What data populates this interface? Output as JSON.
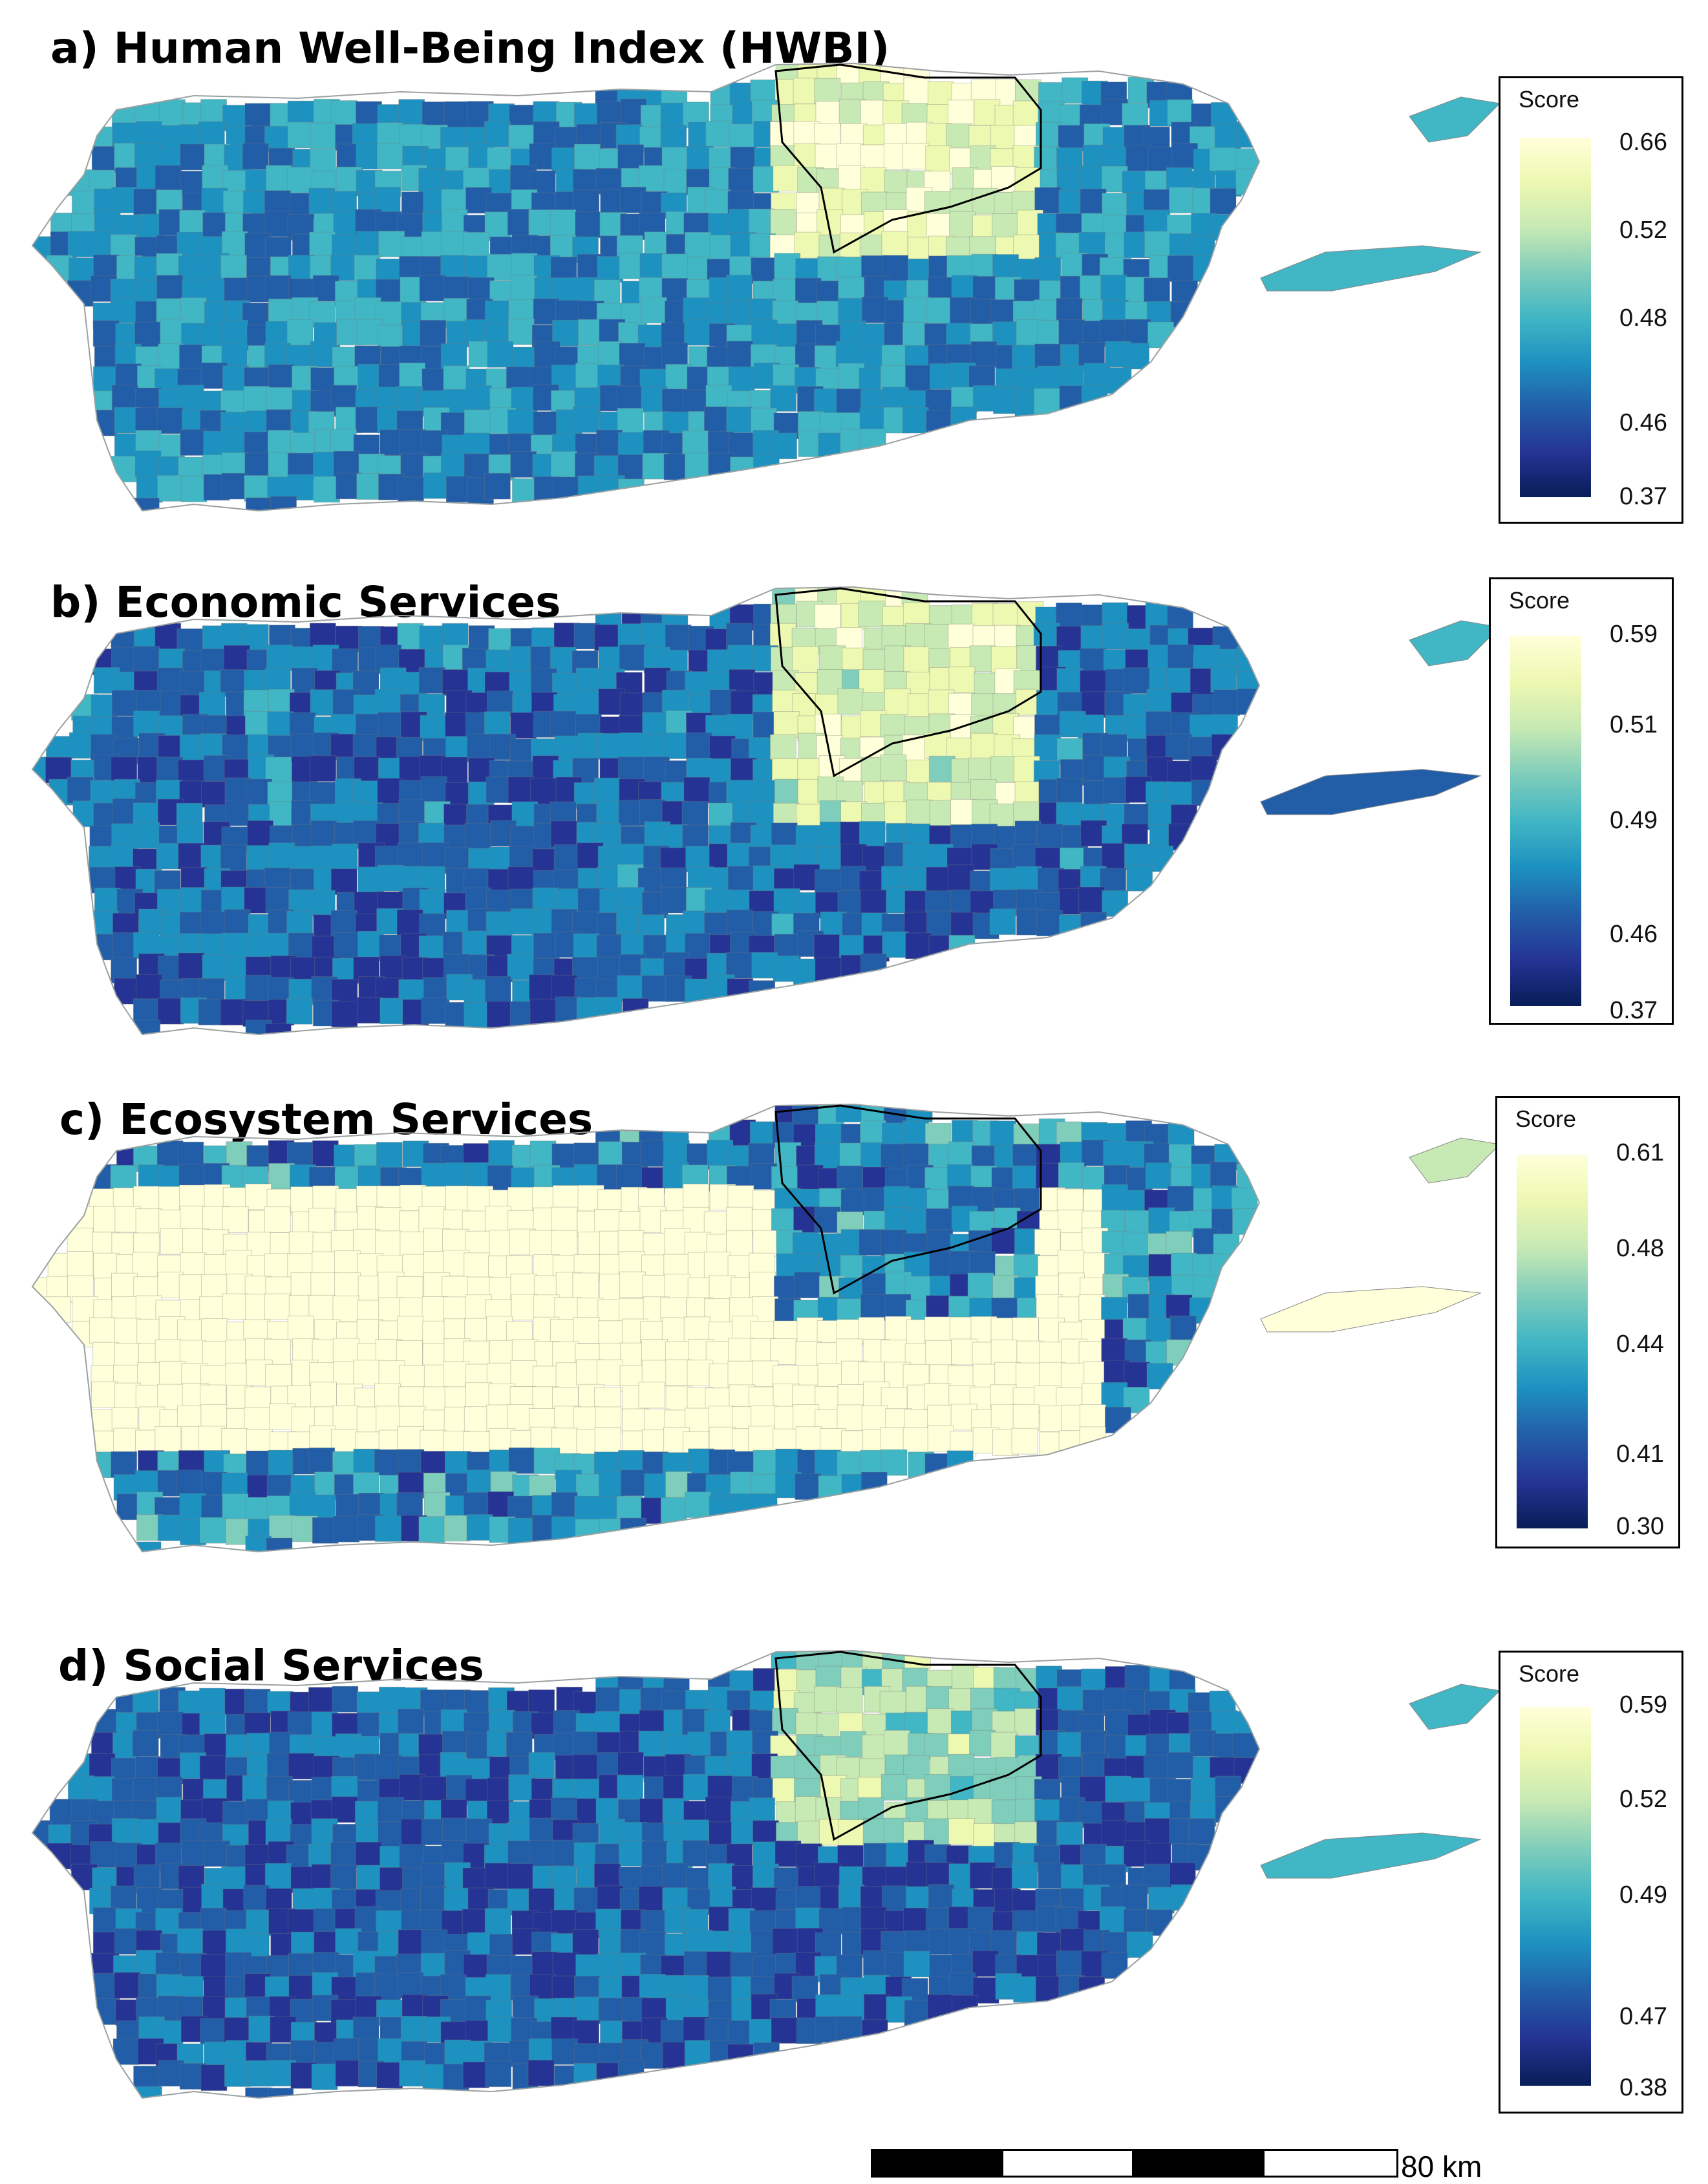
{
  "panels": [
    {
      "title": "a) Human Well-Being Index (HWBI)",
      "variable": "HWBI",
      "legend": {
        "title": "Score",
        "ticks": [
          "0.66",
          "0.52",
          "0.48",
          "0.46",
          "0.37"
        ]
      }
    },
    {
      "title": "b) Economic Services",
      "variable": "economic",
      "legend": {
        "title": "Score",
        "ticks": [
          "0.59",
          "0.51",
          "0.49",
          "0.46",
          "0.37"
        ]
      }
    },
    {
      "title": "c) Ecosystem Services",
      "variable": "ecosystem",
      "legend": {
        "title": "Score",
        "ticks": [
          "0.61",
          "0.48",
          "0.44",
          "0.41",
          "0.30"
        ]
      }
    },
    {
      "title": "d) Social Services",
      "variable": "social",
      "legend": {
        "title": "Score",
        "ticks": [
          "0.59",
          "0.52",
          "0.49",
          "0.47",
          "0.38"
        ]
      }
    }
  ],
  "colormap": [
    "#ffffd9",
    "#edf8b1",
    "#c7e9b4",
    "#7fcdbb",
    "#41b6c4",
    "#1d91c0",
    "#225ea8",
    "#253494",
    "#081d58"
  ],
  "scale_bar": {
    "label": "80 km"
  }
}
